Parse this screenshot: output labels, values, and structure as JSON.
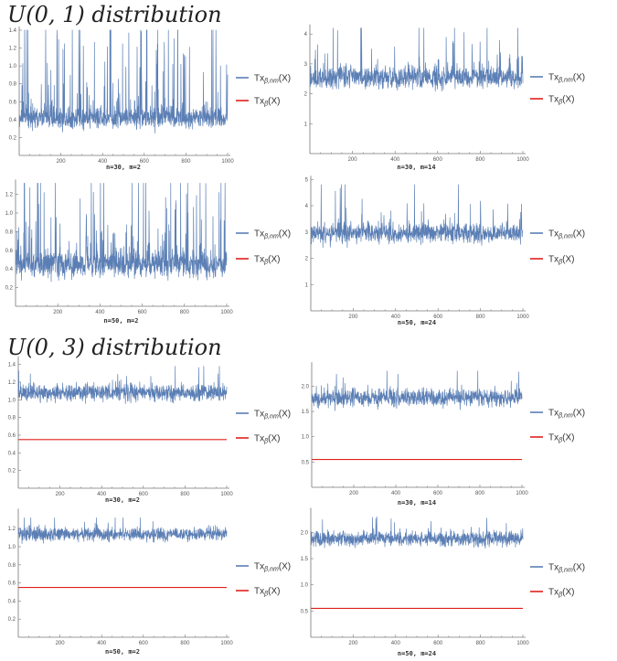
{
  "sections": [
    {
      "title": "U(0, 1)  distribution"
    },
    {
      "title": "U(0, 3)  distribution"
    }
  ],
  "legend": {
    "series_nm": {
      "base": "Tx",
      "sub": "β,nm",
      "tail": "(X)",
      "color": "#5b7fb5"
    },
    "series_b": {
      "base": "Tx",
      "sub": "β",
      "tail": "(X)",
      "color": "#e0201b"
    }
  },
  "chart_data": [
    {
      "type": "line",
      "section": 0,
      "caption": "n=30, m=2",
      "xlim": [
        0,
        1000
      ],
      "xticks": [
        200,
        400,
        600,
        800,
        1000
      ],
      "ylim": [
        0,
        1.4
      ],
      "yticks": [
        "0.2",
        "0.4",
        "0.6",
        "0.8",
        "1.0",
        "1.2",
        "1.4"
      ],
      "ytick_values": [
        0.2,
        0.4,
        0.6,
        0.8,
        1.0,
        1.2,
        1.4
      ],
      "n_points": 1000,
      "series": [
        {
          "name": "Tx_{β,nm}(X)",
          "mean": 0.42,
          "sd": 0.08,
          "spike_prob": 0.15,
          "spike_scale": 0.5,
          "min": 0.2,
          "max": 1.4
        },
        {
          "name": "Tx_β(X)",
          "value": null
        }
      ]
    },
    {
      "type": "line",
      "section": 0,
      "caption": "n=30, m=14",
      "xlim": [
        0,
        1000
      ],
      "xticks": [
        200,
        400,
        600,
        800,
        1000
      ],
      "ylim": [
        0,
        4.2
      ],
      "yticks": [
        "1",
        "2",
        "3",
        "4"
      ],
      "ytick_values": [
        1,
        2,
        3,
        4
      ],
      "n_points": 1000,
      "series": [
        {
          "name": "Tx_{β,nm}(X)",
          "mean": 2.55,
          "sd": 0.25,
          "spike_prob": 0.08,
          "spike_scale": 0.6,
          "min": 1.7,
          "max": 4.2
        },
        {
          "name": "Tx_β(X)",
          "value": null
        }
      ]
    },
    {
      "type": "line",
      "section": 0,
      "caption": "n=50, m=2",
      "xlim": [
        0,
        1000
      ],
      "xticks": [
        200,
        400,
        600,
        800,
        1000
      ],
      "ylim": [
        0,
        1.32
      ],
      "yticks": [
        "0.2",
        "0.4",
        "0.6",
        "0.8",
        "1.0",
        "1.2"
      ],
      "ytick_values": [
        0.2,
        0.4,
        0.6,
        0.8,
        1.0,
        1.2
      ],
      "n_points": 1000,
      "series": [
        {
          "name": "Tx_{β,nm}(X)",
          "mean": 0.45,
          "sd": 0.1,
          "spike_prob": 0.15,
          "spike_scale": 0.45,
          "min": 0.2,
          "max": 1.32
        },
        {
          "name": "Tx_β(X)",
          "value": null
        }
      ]
    },
    {
      "type": "line",
      "section": 0,
      "caption": "n=50, m=24",
      "xlim": [
        0,
        1000
      ],
      "xticks": [
        200,
        400,
        600,
        800,
        1000
      ],
      "ylim": [
        0,
        5
      ],
      "yticks": [
        "1",
        "2",
        "3",
        "4",
        "5"
      ],
      "ytick_values": [
        1,
        2,
        3,
        4,
        5
      ],
      "n_points": 1000,
      "series": [
        {
          "name": "Tx_{β,nm}(X)",
          "mean": 2.95,
          "sd": 0.25,
          "spike_prob": 0.08,
          "spike_scale": 0.6,
          "min": 2.0,
          "max": 4.8
        },
        {
          "name": "Tx_β(X)",
          "value": null
        }
      ]
    },
    {
      "type": "line",
      "section": 1,
      "caption": "n=30, m=2",
      "xlim": [
        0,
        1000
      ],
      "xticks": [
        200,
        400,
        600,
        800,
        1000
      ],
      "ylim": [
        0,
        1.45
      ],
      "yticks": [
        "0.2",
        "0.4",
        "0.6",
        "0.8",
        "1.0",
        "1.2",
        "1.4"
      ],
      "ytick_values": [
        0.2,
        0.4,
        0.6,
        0.8,
        1.0,
        1.2,
        1.4
      ],
      "n_points": 1000,
      "series": [
        {
          "name": "Tx_{β,nm}(X)",
          "mean": 1.08,
          "sd": 0.07,
          "spike_prob": 0.03,
          "spike_scale": 0.12,
          "min": 0.8,
          "max": 1.38
        },
        {
          "name": "Tx_β(X)",
          "value": 0.55
        }
      ]
    },
    {
      "type": "line",
      "section": 1,
      "caption": "n=30, m=14",
      "xlim": [
        0,
        1000
      ],
      "xticks": [
        200,
        400,
        600,
        800,
        1000
      ],
      "ylim": [
        0,
        2.4
      ],
      "yticks": [
        "0.5",
        "1.0",
        "1.5",
        "2.0"
      ],
      "ytick_values": [
        0.5,
        1.0,
        1.5,
        2.0
      ],
      "n_points": 1000,
      "series": [
        {
          "name": "Tx_{β,nm}(X)",
          "mean": 1.77,
          "sd": 0.12,
          "spike_prob": 0.04,
          "spike_scale": 0.2,
          "min": 1.3,
          "max": 2.3
        },
        {
          "name": "Tx_β(X)",
          "value": 0.55
        }
      ]
    },
    {
      "type": "line",
      "section": 1,
      "caption": "n=50, m=2",
      "xlim": [
        0,
        1000
      ],
      "xticks": [
        200,
        400,
        600,
        800,
        1000
      ],
      "ylim": [
        0,
        1.38
      ],
      "yticks": [
        "0.2",
        "0.4",
        "0.6",
        "0.8",
        "1.0",
        "1.2"
      ],
      "ytick_values": [
        0.2,
        0.4,
        0.6,
        0.8,
        1.0,
        1.2
      ],
      "n_points": 1000,
      "series": [
        {
          "name": "Tx_{β,nm}(X)",
          "mean": 1.14,
          "sd": 0.05,
          "spike_prob": 0.03,
          "spike_scale": 0.1,
          "min": 0.9,
          "max": 1.32
        },
        {
          "name": "Tx_β(X)",
          "value": 0.55
        }
      ]
    },
    {
      "type": "line",
      "section": 1,
      "caption": "n=50, m=24",
      "xlim": [
        0,
        1000
      ],
      "xticks": [
        200,
        400,
        600,
        800,
        1000
      ],
      "ylim": [
        0,
        2.4
      ],
      "yticks": [
        "0.5",
        "1.0",
        "1.5",
        "2.0"
      ],
      "ytick_values": [
        0.5,
        1.0,
        1.5,
        2.0
      ],
      "n_points": 1000,
      "series": [
        {
          "name": "Tx_{β,nm}(X)",
          "mean": 1.88,
          "sd": 0.1,
          "spike_prob": 0.04,
          "spike_scale": 0.15,
          "min": 1.5,
          "max": 2.3
        },
        {
          "name": "Tx_β(X)",
          "value": 0.55
        }
      ]
    }
  ]
}
